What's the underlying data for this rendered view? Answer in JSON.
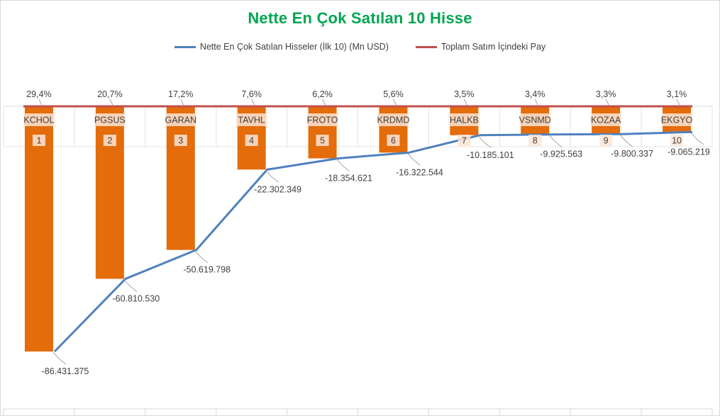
{
  "chart_data": {
    "type": "bar",
    "title": "Nette En Çok Satılan 10 Hisse",
    "legend_position": "top",
    "categories": [
      "KCHOL",
      "PGSUS",
      "GARAN",
      "TAVHL",
      "FROTO",
      "KRDMD",
      "HALKB",
      "VSNMD",
      "KOZAA",
      "EKGYO"
    ],
    "ranks": [
      "1",
      "2",
      "3",
      "4",
      "5",
      "6",
      "7",
      "8",
      "9",
      "10"
    ],
    "series": [
      {
        "name": "Nette En Çok Satılan Hisseler (İlk 10) (Mn USD)",
        "kind": "bar+line",
        "bar_color": "#e46c0a",
        "line_color": "#4f81bd",
        "values": [
          -86431375,
          -60810530,
          -50619798,
          -22302349,
          -18354621,
          -16322544,
          -10185101,
          -9925563,
          -9800337,
          -9065219
        ],
        "labels": [
          "-86.431.375",
          "-60.810.530",
          "-50.619.798",
          "-22.302.349",
          "-18.354.621",
          "-16.322.544",
          "-10.185.101",
          "-9.925.563",
          "-9.800.337",
          "-9.065.219"
        ]
      },
      {
        "name": "Toplam Satım İçindeki Pay",
        "kind": "line",
        "line_color": "#c0504d",
        "values": [
          29.4,
          20.7,
          17.2,
          7.6,
          6.2,
          5.6,
          3.5,
          3.4,
          3.3,
          3.1
        ],
        "labels": [
          "29,4%",
          "20,7%",
          "17,2%",
          "7,6%",
          "6,2%",
          "5,6%",
          "3,5%",
          "3,4%",
          "3,3%",
          "3,1%"
        ]
      }
    ],
    "ylim": [
      -100000000,
      0
    ],
    "grid": true
  }
}
